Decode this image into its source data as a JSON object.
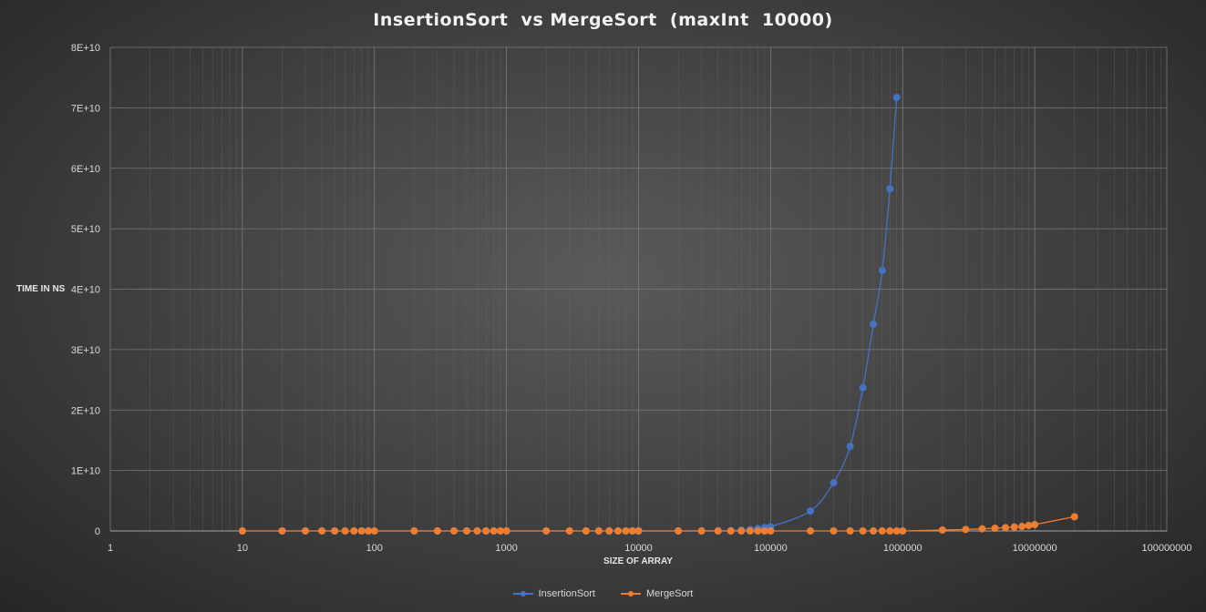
{
  "chart_data": {
    "type": "scatter",
    "title": "InsertionSort  vs MergeSort  (maxInt  10000)",
    "xlabel": "SIZE OF ARRAY",
    "ylabel": "TIME IN NS",
    "x_scale": "log",
    "xlim": [
      1,
      100000000
    ],
    "ylim": [
      0,
      80000000000
    ],
    "x_ticks": [
      "1",
      "10",
      "100",
      "1000",
      "10000",
      "100000",
      "1000000",
      "10000000",
      "100000000"
    ],
    "y_ticks": [
      "0",
      "1E+10",
      "2E+10",
      "3E+10",
      "4E+10",
      "5E+10",
      "6E+10",
      "7E+10",
      "8E+10"
    ],
    "grid": true,
    "legend": "bottom",
    "series": [
      {
        "name": "InsertionSort",
        "color": "#4472c4",
        "line": "smooth",
        "points": [
          [
            10,
            0
          ],
          [
            20,
            0
          ],
          [
            30,
            0
          ],
          [
            40,
            0
          ],
          [
            50,
            0
          ],
          [
            60,
            0
          ],
          [
            70,
            0
          ],
          [
            80,
            0
          ],
          [
            90,
            0
          ],
          [
            100,
            0
          ],
          [
            200,
            0
          ],
          [
            300,
            0
          ],
          [
            400,
            0
          ],
          [
            500,
            0
          ],
          [
            600,
            0
          ],
          [
            700,
            0
          ],
          [
            800,
            0
          ],
          [
            900,
            0
          ],
          [
            1000,
            0
          ],
          [
            2000,
            0
          ],
          [
            3000,
            0
          ],
          [
            4000,
            0
          ],
          [
            5000,
            0
          ],
          [
            6000,
            0
          ],
          [
            7000,
            0
          ],
          [
            8000,
            0
          ],
          [
            9000,
            0
          ],
          [
            10000,
            0
          ],
          [
            20000,
            0
          ],
          [
            30000,
            10000000
          ],
          [
            40000,
            20000000
          ],
          [
            50000,
            50000000
          ],
          [
            60000,
            150000000
          ],
          [
            70000,
            250000000
          ],
          [
            80000,
            400000000
          ],
          [
            90000,
            550000000
          ],
          [
            100000,
            700000000
          ],
          [
            200000,
            3300000000
          ],
          [
            300000,
            8000000000
          ],
          [
            400000,
            14000000000
          ],
          [
            500000,
            23700000000
          ],
          [
            600000,
            34200000000
          ],
          [
            700000,
            43100000000
          ],
          [
            800000,
            56600000000
          ],
          [
            900000,
            71700000000
          ]
        ]
      },
      {
        "name": "MergeSort",
        "color": "#ed7d31",
        "line": "straight",
        "points": [
          [
            10,
            0
          ],
          [
            20,
            0
          ],
          [
            30,
            0
          ],
          [
            40,
            0
          ],
          [
            50,
            0
          ],
          [
            60,
            0
          ],
          [
            70,
            0
          ],
          [
            80,
            0
          ],
          [
            90,
            0
          ],
          [
            100,
            0
          ],
          [
            200,
            0
          ],
          [
            300,
            0
          ],
          [
            400,
            0
          ],
          [
            500,
            0
          ],
          [
            600,
            0
          ],
          [
            700,
            0
          ],
          [
            800,
            0
          ],
          [
            900,
            0
          ],
          [
            1000,
            0
          ],
          [
            2000,
            0
          ],
          [
            3000,
            0
          ],
          [
            4000,
            0
          ],
          [
            5000,
            0
          ],
          [
            6000,
            0
          ],
          [
            7000,
            0
          ],
          [
            8000,
            0
          ],
          [
            9000,
            0
          ],
          [
            10000,
            0
          ],
          [
            20000,
            0
          ],
          [
            30000,
            0
          ],
          [
            40000,
            0
          ],
          [
            50000,
            0
          ],
          [
            60000,
            0
          ],
          [
            70000,
            0
          ],
          [
            80000,
            0
          ],
          [
            90000,
            0
          ],
          [
            100000,
            0
          ],
          [
            200000,
            0
          ],
          [
            300000,
            0
          ],
          [
            400000,
            0
          ],
          [
            500000,
            0
          ],
          [
            600000,
            0
          ],
          [
            700000,
            0
          ],
          [
            800000,
            0
          ],
          [
            900000,
            0
          ],
          [
            1000000,
            0
          ],
          [
            2000000,
            150000000
          ],
          [
            3000000,
            250000000
          ],
          [
            4000000,
            350000000
          ],
          [
            5000000,
            450000000
          ],
          [
            6000000,
            550000000
          ],
          [
            7000000,
            650000000
          ],
          [
            8000000,
            750000000
          ],
          [
            9000000,
            900000000
          ],
          [
            10000000,
            1050000000
          ],
          [
            20000000,
            2350000000
          ]
        ]
      }
    ]
  }
}
